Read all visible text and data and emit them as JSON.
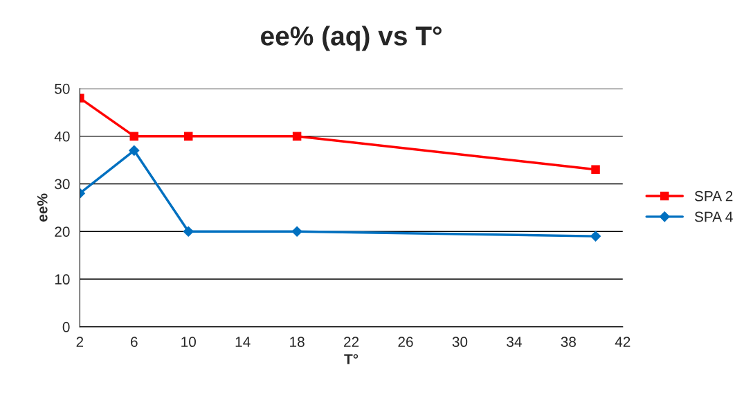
{
  "chart_data": {
    "type": "line",
    "title": "ee% (aq) vs T°",
    "xlabel": "T°",
    "ylabel": "ee%",
    "x": [
      2,
      6,
      10,
      18,
      40
    ],
    "series": [
      {
        "name": "SPA 2",
        "color": "#ff0000",
        "marker": "square",
        "values": [
          48,
          40,
          40,
          40,
          33
        ]
      },
      {
        "name": "SPA 4",
        "color": "#0070c0",
        "marker": "diamond",
        "values": [
          28,
          37,
          20,
          20,
          19
        ]
      }
    ],
    "xlim": [
      2,
      42
    ],
    "xticks": [
      2,
      6,
      10,
      14,
      18,
      22,
      26,
      30,
      34,
      38,
      42
    ],
    "ylim": [
      0,
      50
    ],
    "yticks": [
      0,
      10,
      20,
      30,
      40,
      50
    ],
    "grid": "y",
    "legend": "right"
  }
}
